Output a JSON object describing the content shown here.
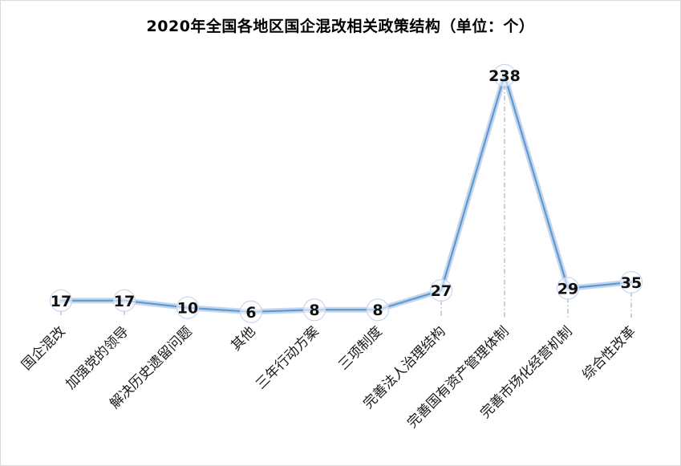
{
  "chart_data": {
    "type": "line",
    "title": "2020年全国各地区国企混改相关政策结构（单位：个）",
    "categories": [
      "国企混改",
      "加强党的领导",
      "解决历史遗留问题",
      "其他",
      "三年行动方案",
      "三项制度",
      "完善法人治理结构",
      "完善国有资产管理体制",
      "完善市场化经营机制",
      "综合性改革"
    ],
    "values": [
      17,
      17,
      10,
      6,
      8,
      8,
      27,
      238,
      29,
      35
    ],
    "xlabel": "",
    "ylabel": "",
    "ylim": [
      0,
      245
    ],
    "grid": false,
    "legend": "none",
    "colors": {
      "line": "#5b9bd5",
      "line_glow": "#c7d5ea",
      "marker_outline": "#c9d7ee",
      "drop_line": "#8aa0b8",
      "label_text": "#111111",
      "frame": "#d9d9d9"
    }
  }
}
